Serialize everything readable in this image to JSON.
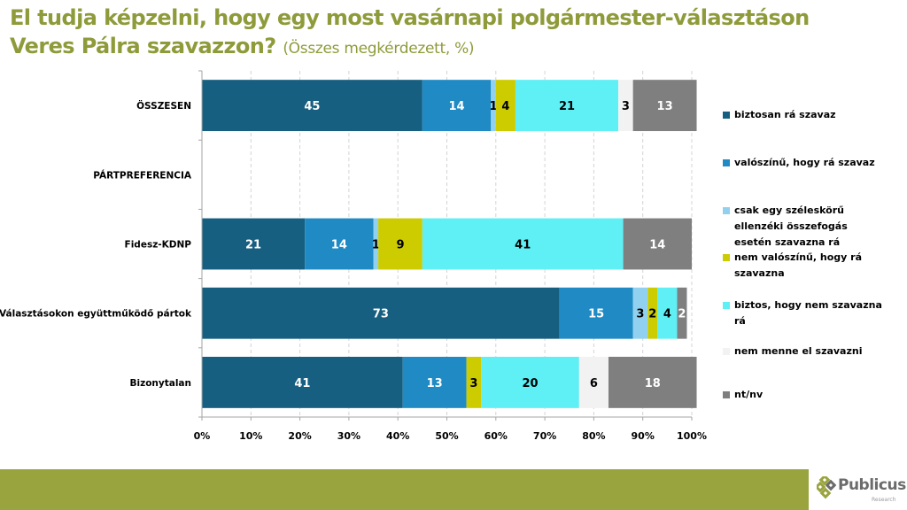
{
  "title": {
    "main_line1": "El tudja képzelni, hogy egy most vasárnapi polgármester-választáson",
    "main_line2": "Veres Pálra szavazzon?",
    "subtitle": "(Összes megkérdezett, %)"
  },
  "chart_data": {
    "type": "bar",
    "orientation": "horizontal",
    "stacked": "percent",
    "title": "El tudja képzelni, hogy egy most vasárnapi polgármester-választáson Veres Pálra szavazzon? (Összes megkérdezett, %)",
    "xlabel": "",
    "ylabel": "",
    "xlim": [
      0,
      100
    ],
    "x_ticks": [
      "0%",
      "10%",
      "20%",
      "30%",
      "40%",
      "50%",
      "60%",
      "70%",
      "80%",
      "90%",
      "100%"
    ],
    "grid": "vertical dashed",
    "legend_position": "right",
    "categories": [
      "ÖSSZESEN",
      "PÁRTPREFERENCIA",
      "Fidesz-KDNP",
      "Választásokon együttműködő pártok",
      "Bizonytalan"
    ],
    "series": [
      {
        "name": "biztosan rá szavaz",
        "color": "#175f80",
        "label_color": "#ffffff",
        "values": [
          45,
          null,
          21,
          73,
          41
        ]
      },
      {
        "name": "valószínű, hogy rá szavaz",
        "color": "#1f8ac3",
        "label_color": "#ffffff",
        "values": [
          14,
          null,
          14,
          15,
          13
        ]
      },
      {
        "name": "csak egy széleskörű ellenzéki összefogás esetén szavazna rá",
        "color": "#92d0ef",
        "label_color": "#000000",
        "values": [
          1,
          null,
          1,
          3,
          0
        ]
      },
      {
        "name": "nem valószínű, hogy rá szavazna",
        "color": "#cccc00",
        "label_color": "#000000",
        "values": [
          4,
          null,
          9,
          2,
          3
        ]
      },
      {
        "name": "biztos, hogy nem szavazna rá",
        "color": "#5ef0f5",
        "label_color": "#000000",
        "values": [
          21,
          null,
          41,
          4,
          20
        ]
      },
      {
        "name": "nem menne el szavazni",
        "color": "#f2f2f2",
        "label_color": "#000000",
        "values": [
          3,
          null,
          0,
          0,
          6
        ]
      },
      {
        "name": "nt/nv",
        "color": "#7f7f7f",
        "label_color": "#ffffff",
        "values": [
          13,
          null,
          14,
          2,
          18
        ]
      }
    ]
  },
  "footer": {
    "band_color": "#9aa43f",
    "logo_name": "Publicus",
    "logo_sub": "Research",
    "logo_icon": "diamond-cluster-icon"
  }
}
